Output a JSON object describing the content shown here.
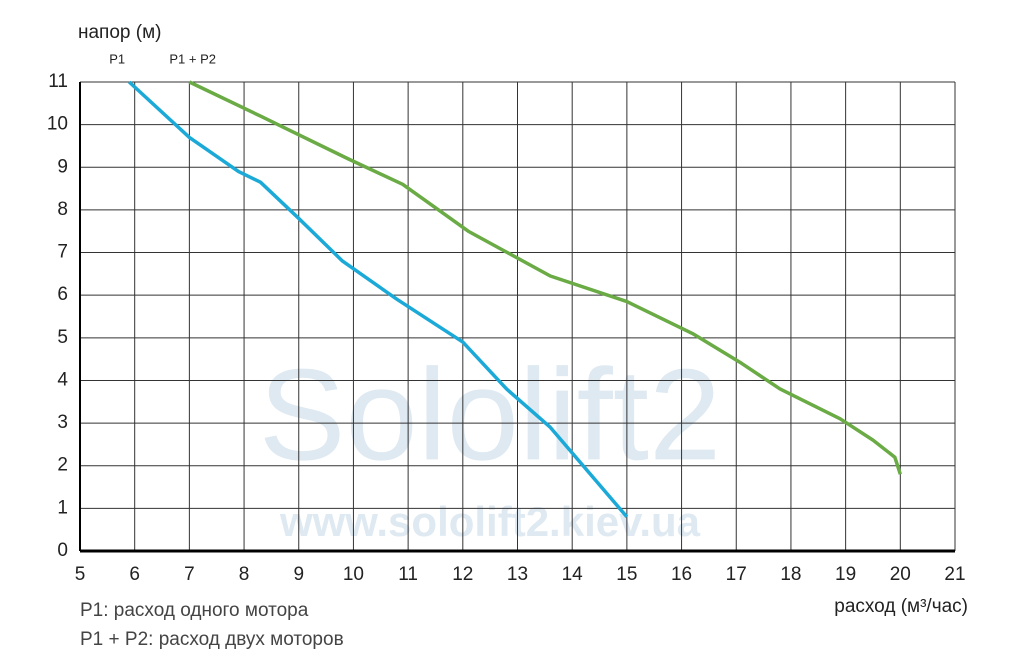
{
  "chart_data": {
    "type": "line",
    "title": "напор (м)",
    "x_label": "расход (м³/час)",
    "notes": [
      "P1: расход одного мотора",
      "P1 + P2: расход двух моторов"
    ],
    "watermark": [
      "Sololift2",
      "www.sololift2.kiev.ua"
    ],
    "xlim": [
      5,
      21
    ],
    "xticks": [
      5,
      6,
      7,
      8,
      9,
      10,
      11,
      12,
      13,
      14,
      15,
      16,
      17,
      18,
      19,
      20,
      21
    ],
    "ylim": [
      0,
      11
    ],
    "yticks": [
      0,
      1,
      2,
      3,
      4,
      5,
      6,
      7,
      8,
      9,
      10,
      11
    ],
    "grid": true,
    "series": [
      {
        "name": "P1",
        "color": "#1ba9d8",
        "x": [
          5.9,
          7,
          7.9,
          8.3,
          9,
          9.8,
          10.8,
          12,
          12.8,
          13.6,
          15
        ],
        "values": [
          11,
          9.7,
          8.9,
          8.65,
          7.8,
          6.8,
          5.9,
          4.9,
          3.8,
          2.9,
          0.8
        ]
      },
      {
        "name": "P1 + P2",
        "color": "#6aab45",
        "x": [
          7,
          8.3,
          9.9,
          10.9,
          12.1,
          13.6,
          15,
          16.2,
          17.1,
          17.8,
          18.9,
          19.5,
          19.9,
          20
        ],
        "values": [
          11,
          10.2,
          9.2,
          8.6,
          7.5,
          6.45,
          5.85,
          5.1,
          4.4,
          3.8,
          3.1,
          2.6,
          2.2,
          1.8
        ]
      }
    ]
  }
}
